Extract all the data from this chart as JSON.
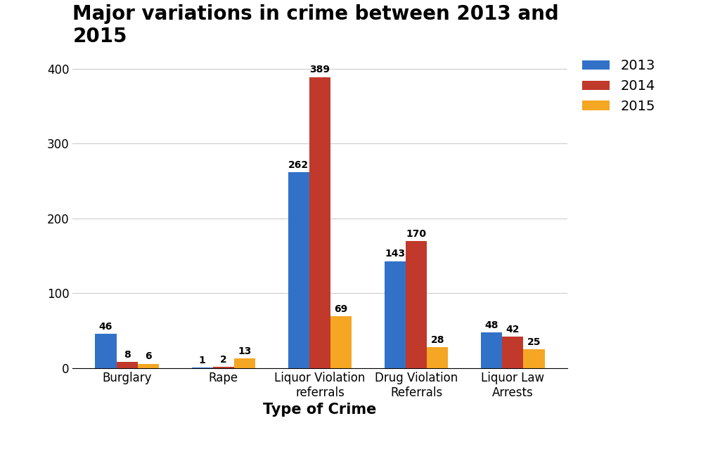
{
  "title": "Major variations in crime between 2013 and\n2015",
  "xlabel": "Type of Crime",
  "categories": [
    "Burglary",
    "Rape",
    "Liquor Violation\nreferrals",
    "Drug Violation\nReferrals",
    "Liquor Law\nArrests"
  ],
  "series": {
    "2013": [
      46,
      1,
      262,
      143,
      48
    ],
    "2014": [
      8,
      2,
      389,
      170,
      42
    ],
    "2015": [
      6,
      13,
      69,
      28,
      25
    ]
  },
  "colors": {
    "2013": "#3271C8",
    "2014": "#C0392B",
    "2015": "#F5A623"
  },
  "ylim": [
    0,
    420
  ],
  "yticks": [
    0,
    100,
    200,
    300,
    400
  ],
  "bar_width": 0.22,
  "legend_labels": [
    "2013",
    "2014",
    "2015"
  ],
  "title_fontsize": 20,
  "axis_label_fontsize": 15,
  "tick_fontsize": 12,
  "legend_fontsize": 14,
  "bar_label_fontsize": 10,
  "background_color": "#ffffff"
}
